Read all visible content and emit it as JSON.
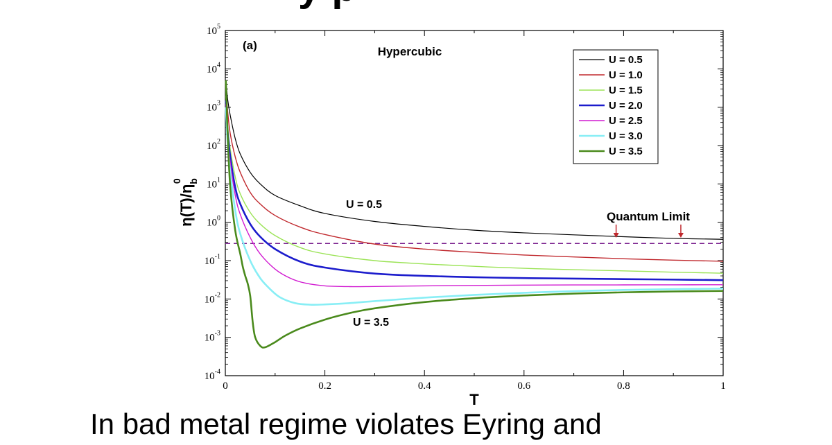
{
  "slide": {
    "title_fragment": "y   p",
    "footer_text": "In bad metal regime violates Eyring and"
  },
  "chart_data": {
    "type": "line",
    "panel_label": "(a)",
    "title": "Hypercubic",
    "xlabel": "T",
    "ylabel": "η(T)/η_b^0",
    "ylabel_main": "η(T)/η",
    "ylabel_sub": "b",
    "ylabel_sup": "0",
    "xscale": "linear",
    "yscale": "log",
    "xlim": [
      0,
      1
    ],
    "ylim": [
      0.0001,
      100000
    ],
    "xticks": [
      {
        "value": 0,
        "label": "0"
      },
      {
        "value": 0.2,
        "label": "0.2"
      },
      {
        "value": 0.4,
        "label": "0.4"
      },
      {
        "value": 0.6,
        "label": "0.6"
      },
      {
        "value": 0.8,
        "label": "0.8"
      },
      {
        "value": 1,
        "label": "1"
      }
    ],
    "yticks": [
      {
        "value": 0.0001,
        "base": "10",
        "exp": "-4"
      },
      {
        "value": 0.001,
        "base": "10",
        "exp": "-3"
      },
      {
        "value": 0.01,
        "base": "10",
        "exp": "-2"
      },
      {
        "value": 0.1,
        "base": "10",
        "exp": "-1"
      },
      {
        "value": 1,
        "base": "10",
        "exp": "0"
      },
      {
        "value": 10,
        "base": "10",
        "exp": "1"
      },
      {
        "value": 100,
        "base": "10",
        "exp": "2"
      },
      {
        "value": 1000,
        "base": "10",
        "exp": "3"
      },
      {
        "value": 10000,
        "base": "10",
        "exp": "4"
      },
      {
        "value": 100000,
        "base": "10",
        "exp": "5"
      }
    ],
    "legend_position": "top-right",
    "series": [
      {
        "name": "U = 0.5",
        "color": "#000000",
        "width": 1.2,
        "x": [
          0.001,
          0.005,
          0.01,
          0.02,
          0.03,
          0.05,
          0.07,
          0.1,
          0.15,
          0.2,
          0.3,
          0.4,
          0.5,
          0.6,
          0.7,
          0.8,
          0.9,
          1.0
        ],
        "y": [
          5000,
          1500,
          600,
          150,
          60,
          20,
          10,
          5,
          2.7,
          1.7,
          1.05,
          0.78,
          0.62,
          0.53,
          0.47,
          0.42,
          0.38,
          0.36
        ]
      },
      {
        "name": "U = 1.0",
        "color": "#c0282d",
        "width": 1.4,
        "x": [
          0.001,
          0.005,
          0.01,
          0.02,
          0.03,
          0.05,
          0.07,
          0.1,
          0.15,
          0.2,
          0.3,
          0.4,
          0.5,
          0.6,
          0.7,
          0.8,
          0.9,
          1.0
        ],
        "y": [
          3000,
          700,
          200,
          50,
          20,
          6,
          3,
          1.5,
          0.75,
          0.48,
          0.27,
          0.2,
          0.165,
          0.14,
          0.125,
          0.112,
          0.103,
          0.096
        ]
      },
      {
        "name": "U = 1.5",
        "color": "#9be356",
        "width": 1.4,
        "x": [
          0.001,
          0.005,
          0.01,
          0.02,
          0.03,
          0.05,
          0.07,
          0.1,
          0.15,
          0.2,
          0.3,
          0.4,
          0.5,
          0.6,
          0.7,
          0.8,
          0.9,
          1.0
        ],
        "y": [
          2000,
          300,
          80,
          15,
          5.5,
          1.8,
          0.9,
          0.45,
          0.22,
          0.15,
          0.1,
          0.082,
          0.071,
          0.063,
          0.058,
          0.054,
          0.05,
          0.047
        ]
      },
      {
        "name": "U = 2.0",
        "color": "#1c1ccc",
        "width": 2.6,
        "x": [
          0.001,
          0.005,
          0.01,
          0.02,
          0.03,
          0.05,
          0.07,
          0.1,
          0.15,
          0.2,
          0.3,
          0.4,
          0.5,
          0.6,
          0.7,
          0.8,
          0.9,
          1.0
        ],
        "y": [
          1500,
          200,
          50,
          8,
          3,
          0.9,
          0.42,
          0.2,
          0.095,
          0.066,
          0.046,
          0.04,
          0.037,
          0.035,
          0.034,
          0.033,
          0.032,
          0.031
        ]
      },
      {
        "name": "U = 2.5",
        "color": "#d11ad1",
        "width": 1.4,
        "x": [
          0.001,
          0.005,
          0.01,
          0.02,
          0.03,
          0.05,
          0.07,
          0.1,
          0.13,
          0.16,
          0.2,
          0.25,
          0.3,
          0.4,
          0.5,
          0.6,
          0.7,
          0.8,
          0.9,
          1.0
        ],
        "y": [
          1200,
          150,
          35,
          5,
          1.6,
          0.4,
          0.15,
          0.06,
          0.035,
          0.026,
          0.022,
          0.021,
          0.0212,
          0.022,
          0.0225,
          0.023,
          0.0232,
          0.0233,
          0.0234,
          0.0235
        ]
      },
      {
        "name": "U = 3.0",
        "color": "#88eef5",
        "width": 2.6,
        "x": [
          0.001,
          0.005,
          0.01,
          0.02,
          0.03,
          0.05,
          0.07,
          0.09,
          0.11,
          0.14,
          0.17,
          0.2,
          0.25,
          0.3,
          0.4,
          0.5,
          0.6,
          0.7,
          0.8,
          0.9,
          1.0
        ],
        "y": [
          1000,
          100,
          20,
          2,
          0.5,
          0.1,
          0.035,
          0.018,
          0.011,
          0.0078,
          0.0071,
          0.0072,
          0.0078,
          0.0088,
          0.0108,
          0.0128,
          0.0145,
          0.016,
          0.0172,
          0.018,
          0.0187
        ]
      },
      {
        "name": "U = 3.5",
        "color": "#4a8a1c",
        "width": 2.6,
        "x": [
          0.001,
          0.005,
          0.01,
          0.02,
          0.03,
          0.035,
          0.04,
          0.045,
          0.05,
          0.055,
          0.06,
          0.07,
          0.08,
          0.1,
          0.12,
          0.15,
          0.2,
          0.25,
          0.3,
          0.4,
          0.5,
          0.6,
          0.7,
          0.8,
          0.9,
          1.0
        ],
        "y": [
          5000,
          150,
          8,
          0.6,
          0.15,
          0.07,
          0.04,
          0.025,
          0.012,
          0.0025,
          0.001,
          0.0006,
          0.00055,
          0.00075,
          0.0011,
          0.0017,
          0.0029,
          0.0043,
          0.0057,
          0.0083,
          0.0105,
          0.0123,
          0.0138,
          0.0149,
          0.0157,
          0.0162
        ]
      }
    ],
    "reference_line": {
      "name": "Quantum Limit",
      "y": 0.28,
      "color": "#7a1e8e",
      "style": "dashed"
    },
    "annotations": [
      {
        "text": "U = 0.5",
        "x": 0.24,
        "y": 2.2
      },
      {
        "text": "U = 3.5",
        "x": 0.25,
        "y": 0.0022
      },
      {
        "text": "Quantum Limit",
        "x": 0.89,
        "y": 1.3
      }
    ],
    "arrows": [
      {
        "label": "quantum-limit-arrow-left",
        "x": 0.785,
        "y_from": 1.3,
        "y_to": 0.3
      },
      {
        "label": "quantum-limit-arrow-right",
        "x": 0.915,
        "y_from": 1.3,
        "y_to": 0.3
      }
    ]
  }
}
